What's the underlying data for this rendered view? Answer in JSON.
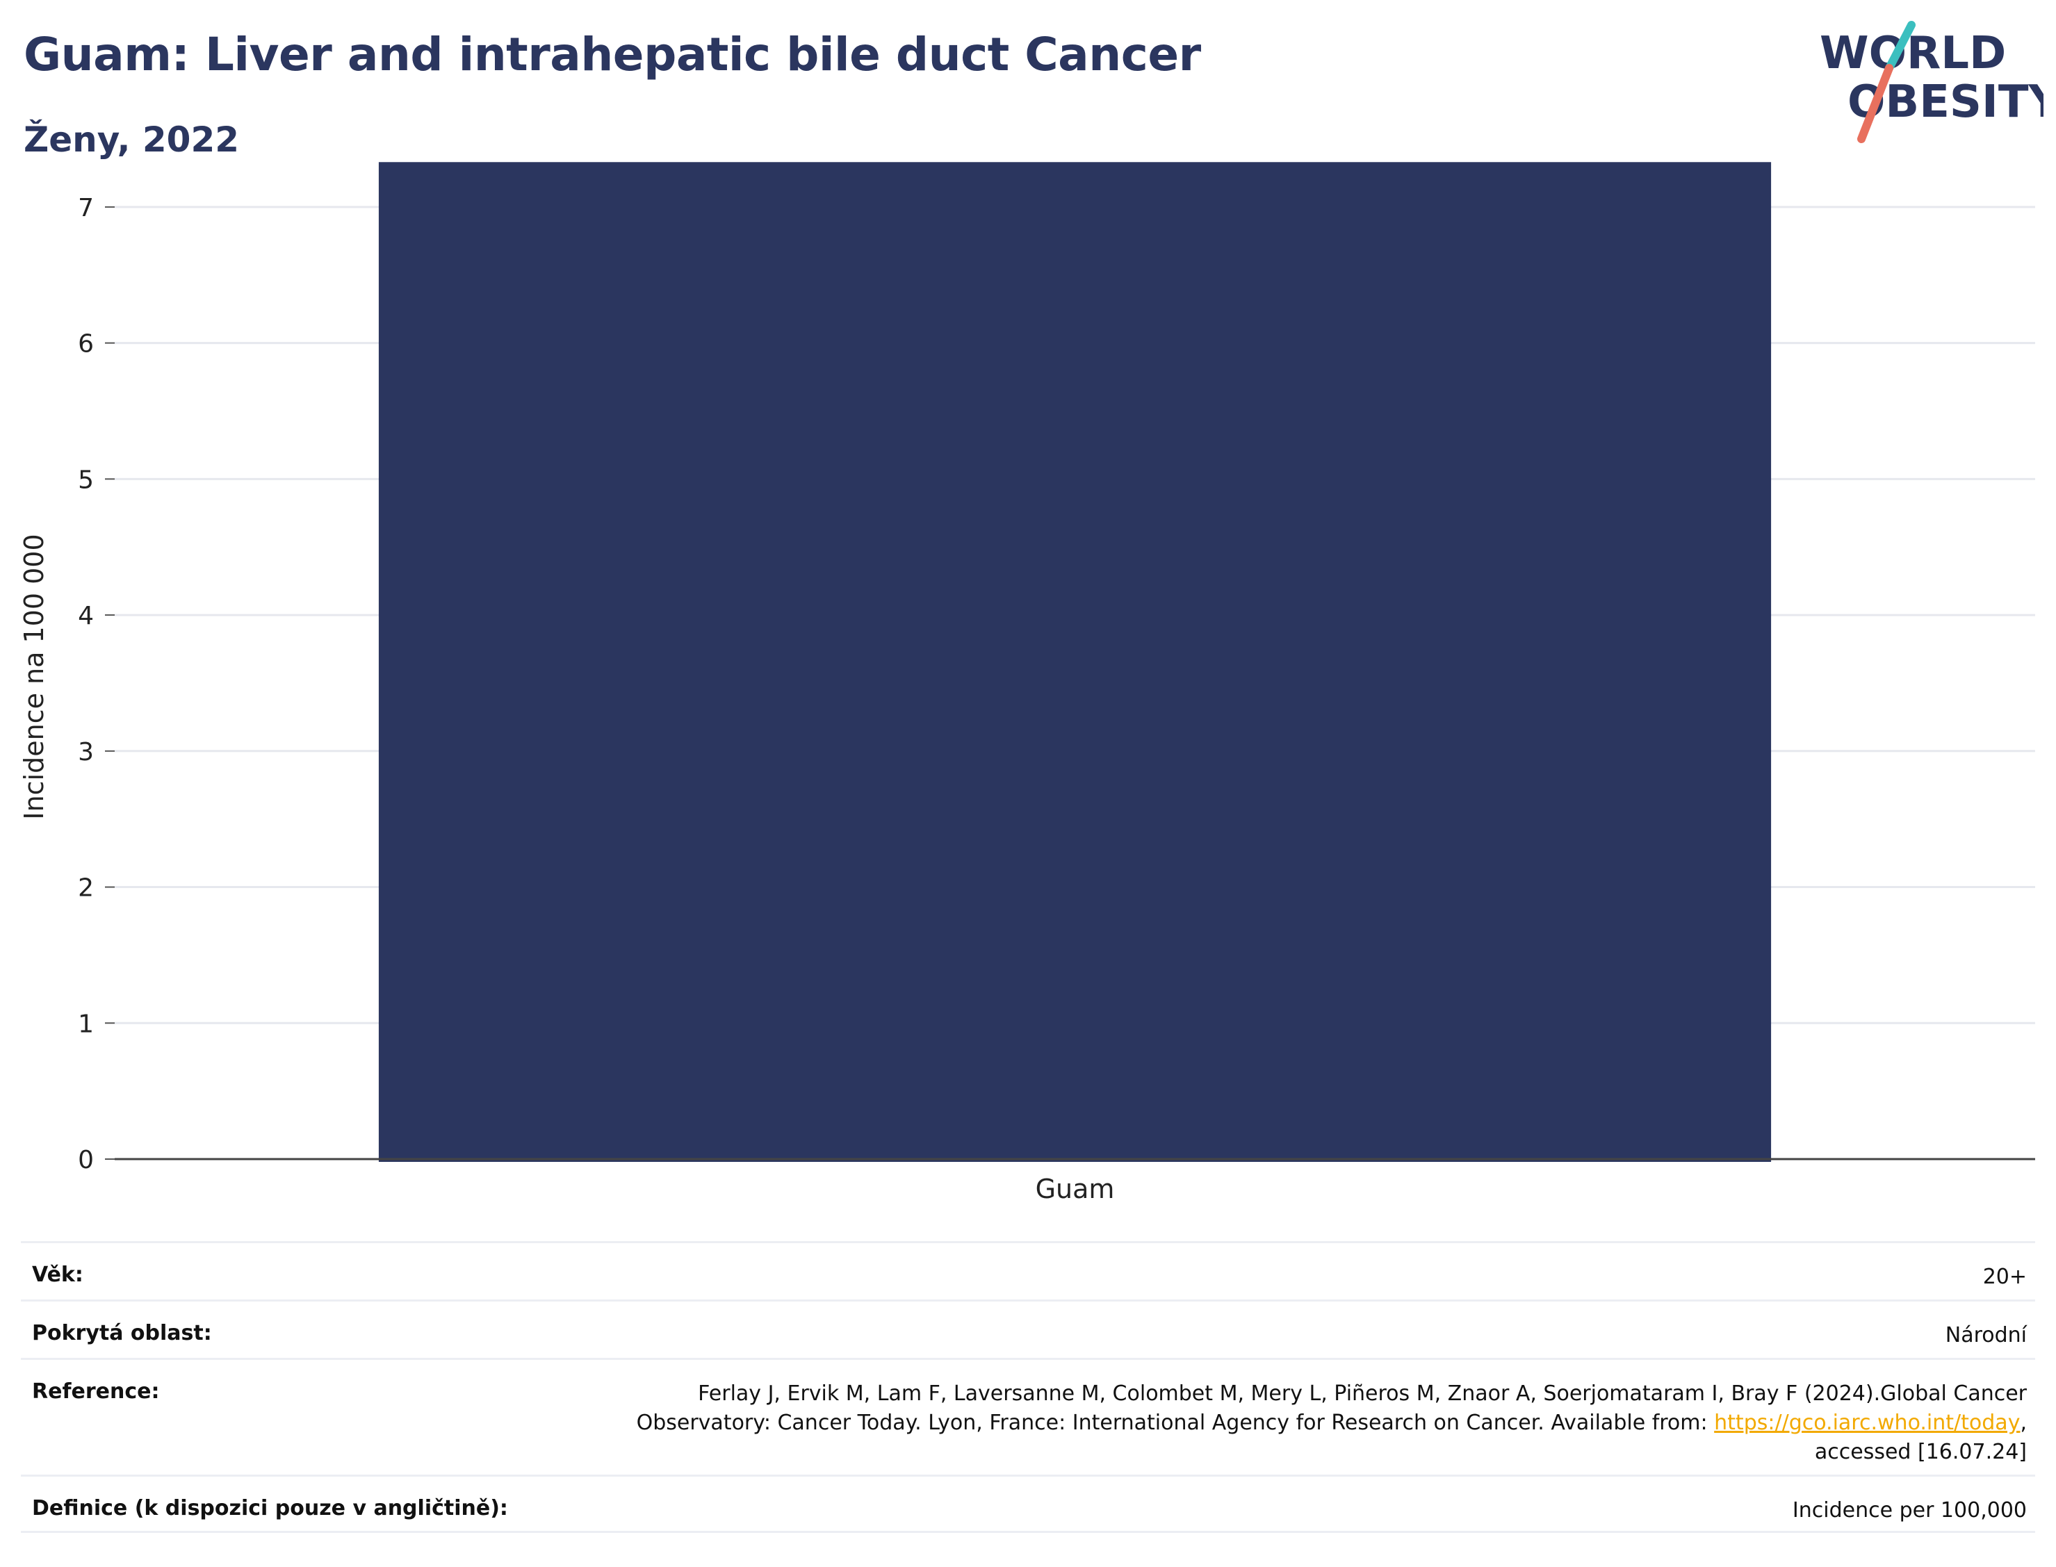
{
  "header": {
    "title": "Guam: Liver and intrahepatic bile duct Cancer",
    "subtitle": "Ženy, 2022"
  },
  "logo": {
    "line1": "WORLD",
    "line2": "OBESITY",
    "colors": {
      "text": "#2b365f",
      "slash_teal": "#3bbfbf",
      "slash_red": "#e8705e"
    }
  },
  "chart_data": {
    "type": "bar",
    "categories": [
      "Guam"
    ],
    "values": [
      7.33
    ],
    "title": "",
    "xlabel": "",
    "ylabel": "Incidence na 100 000",
    "ylim": [
      0,
      7.5
    ],
    "yticks": [
      0,
      1,
      2,
      3,
      4,
      5,
      6,
      7
    ],
    "grid": true,
    "bar_color": "#2b365f"
  },
  "meta": {
    "age_label": "Věk:",
    "age_value": "20+",
    "area_label": "Pokrytá oblast:",
    "area_value": "Národní",
    "reference_label": "Reference:",
    "reference_line1": "Ferlay J, Ervik M, Lam F, Laversanne M, Colombet M, Mery L, Piñeros M, Znaor A, Soerjomataram I, Bray F (2024).Global Cancer",
    "reference_line2_pre": "Observatory: Cancer Today. Lyon, France: International Agency for Research on Cancer. Available from: ",
    "reference_link": "https://gco.iarc.who.int/today",
    "reference_line2_post": ",",
    "reference_line3": "accessed [16.07.24]",
    "definition_label": "Definice (k dispozici pouze v angličtině):",
    "definition_value": "Incidence per 100,000"
  }
}
